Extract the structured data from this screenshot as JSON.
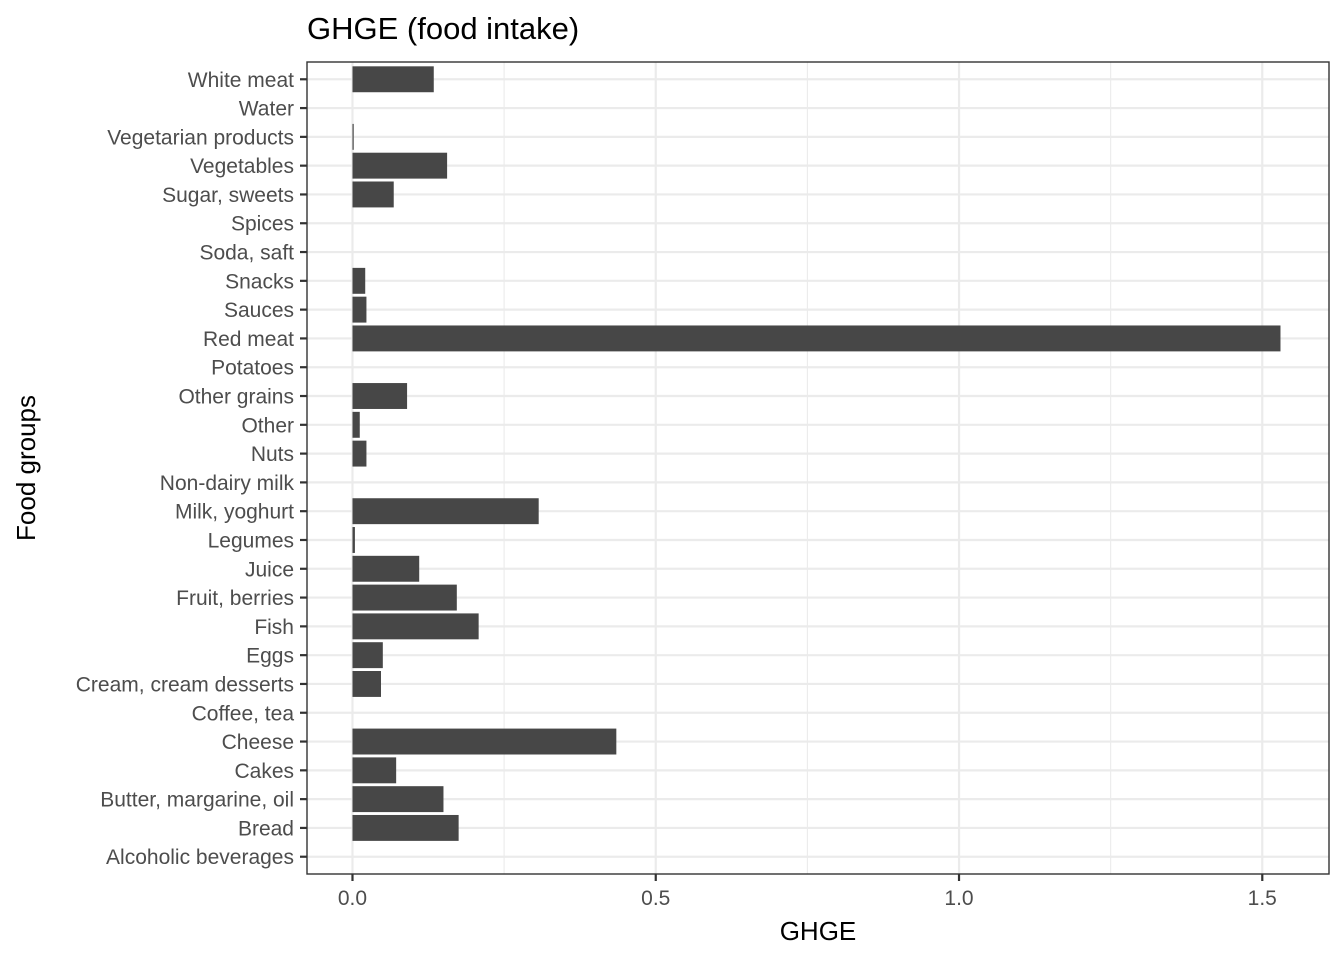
{
  "chart_data": {
    "type": "bar",
    "orientation": "horizontal",
    "title": "GHGE (food intake)",
    "xlabel": "GHGE",
    "ylabel": "Food groups",
    "xlim": [
      -0.075,
      1.61
    ],
    "x_ticks": [
      {
        "value": 0.0,
        "label": "0.0"
      },
      {
        "value": 0.5,
        "label": "0.5"
      },
      {
        "value": 1.0,
        "label": "1.0"
      },
      {
        "value": 1.5,
        "label": "1.5"
      }
    ],
    "grid": true,
    "categories": [
      "Alcoholic beverages",
      "Bread",
      "Butter, margarine, oil",
      "Cakes",
      "Cheese",
      "Coffee, tea",
      "Cream, cream desserts",
      "Eggs",
      "Fish",
      "Fruit, berries",
      "Juice",
      "Legumes",
      "Milk, yoghurt",
      "Non-dairy milk",
      "Nuts",
      "Other",
      "Other grains",
      "Potatoes",
      "Red meat",
      "Sauces",
      "Snacks",
      "Soda, saft",
      "Spices",
      "Sugar, sweets",
      "Vegetables",
      "Vegetarian products",
      "Water",
      "White meat"
    ],
    "values": [
      0.0,
      0.175,
      0.15,
      0.072,
      0.435,
      0.0,
      0.047,
      0.05,
      0.208,
      0.172,
      0.11,
      0.004,
      0.307,
      0.0,
      0.023,
      0.012,
      0.09,
      0.0,
      1.53,
      0.023,
      0.021,
      0.0,
      0.0,
      0.068,
      0.156,
      0.002,
      0.0,
      0.134
    ],
    "colors": {
      "bar": "#474747",
      "grid": "#ebebeb",
      "border": "#333333",
      "tick_text": "#4d4d4d"
    }
  }
}
